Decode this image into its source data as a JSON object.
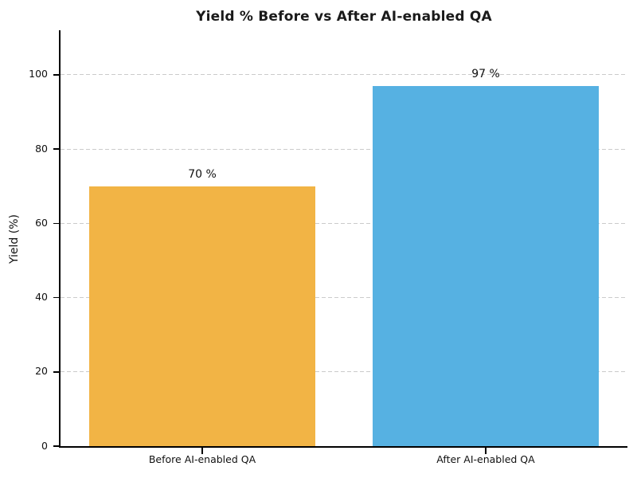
{
  "title": "Yield % Before vs After AI-enabled QA",
  "chart_data": {
    "type": "bar",
    "title": "Yield % Before vs After AI-enabled QA",
    "categories": [
      "Before AI-enabled QA",
      "After AI-enabled QA"
    ],
    "values": [
      70,
      97
    ],
    "bar_labels": [
      "70 %",
      "97 %"
    ],
    "bar_colors": [
      "#F2B445",
      "#56B1E2"
    ],
    "xlabel": "",
    "ylabel": "Yield (%)",
    "ylim": [
      0,
      112
    ],
    "yticks": [
      0,
      20,
      40,
      60,
      80,
      100
    ],
    "bar_width_fraction": 0.8,
    "grid": "horizontal-dashed",
    "grid_color": "#cbcbcb",
    "background": "#ffffff",
    "spine_color": "#000000",
    "legend": "none"
  }
}
